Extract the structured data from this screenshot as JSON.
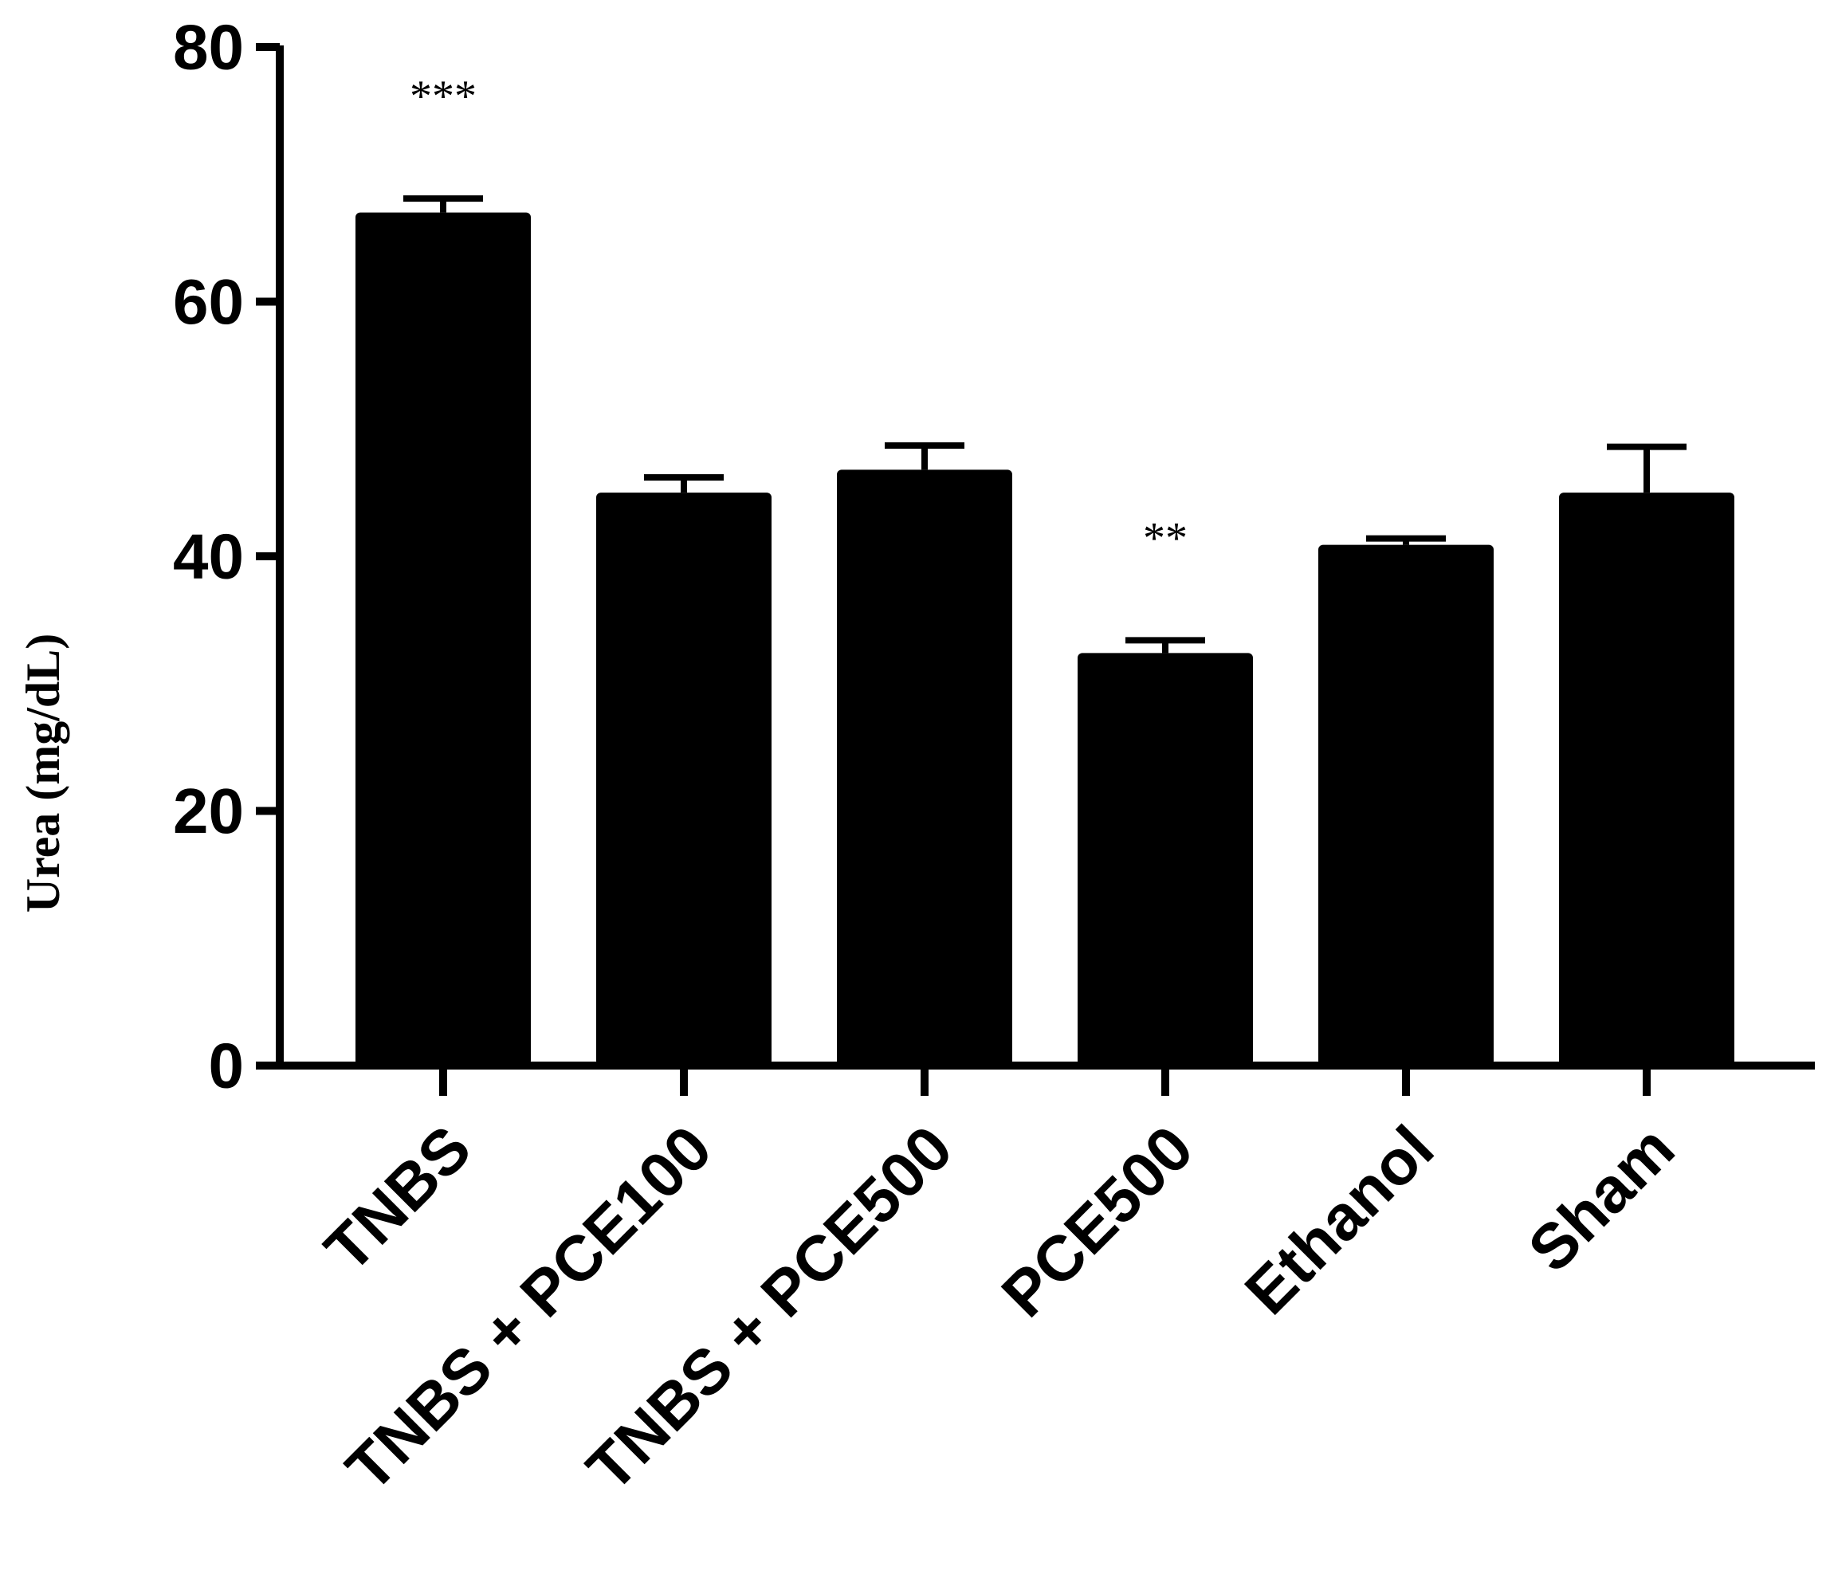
{
  "chart_data": {
    "type": "bar",
    "y_label": "Urea (mg/dL)",
    "categories": [
      "TNBS",
      "TNBS + PCE100",
      "TNBS + PCE500",
      "PCE500",
      "Ethanol",
      "Sham"
    ],
    "values": [
      67.0,
      45.0,
      46.8,
      32.4,
      40.9,
      45.0
    ],
    "errors": [
      1.1,
      1.2,
      1.9,
      1.0,
      0.5,
      3.6
    ],
    "annotations": [
      "***",
      null,
      null,
      "**",
      null,
      null
    ],
    "color": "#000000",
    "ylim": [
      0,
      80
    ],
    "yticks": [
      0,
      20,
      40,
      60,
      80
    ],
    "grid": false
  }
}
